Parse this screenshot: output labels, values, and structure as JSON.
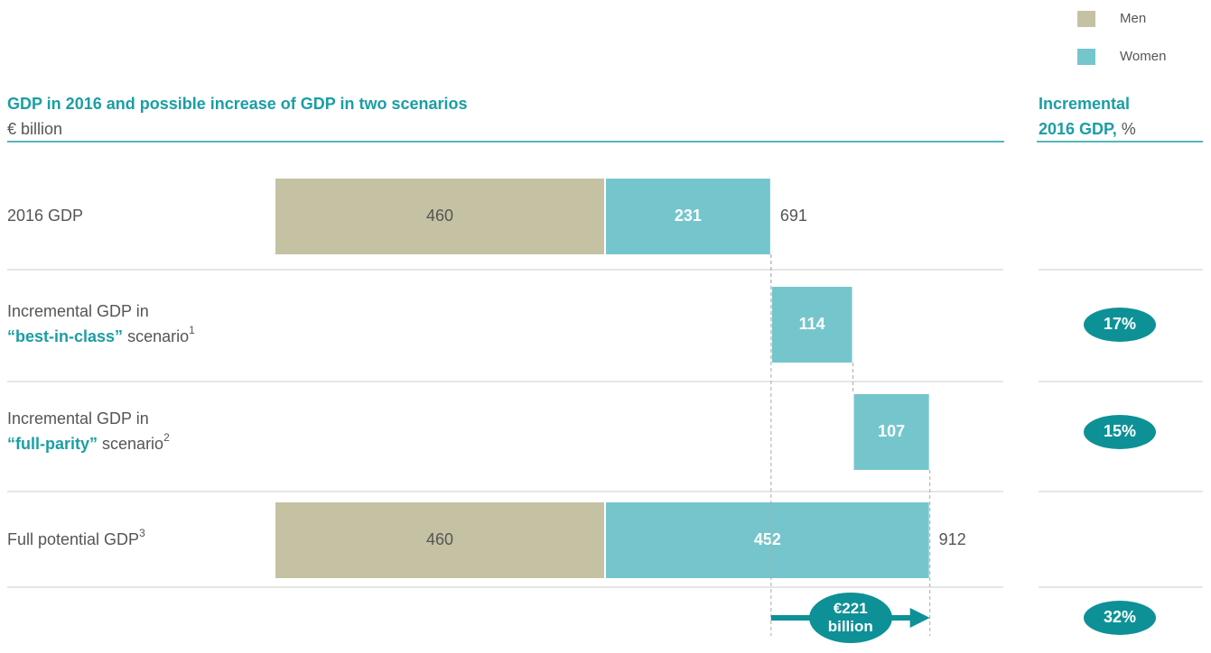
{
  "chart_data": {
    "type": "waterfall",
    "title": "GDP in 2016 and possible increase of GDP in two scenarios",
    "subtitle": "€ billion",
    "side_title_lines": [
      "Incremental",
      "2016 GDP,"
    ],
    "side_unit": "%",
    "series": [
      {
        "name": "Men",
        "color": "#c5c2a3"
      },
      {
        "name": "Women",
        "color": "#74c6cc"
      }
    ],
    "rows": [
      {
        "label": "2016 GDP",
        "segments": [
          {
            "series": 0,
            "value": 460
          },
          {
            "series": 1,
            "value": 231
          }
        ],
        "total": 691
      },
      {
        "label": "Incremental GDP in",
        "highlight": "“best-in-class”",
        "suffix": "scenario",
        "footnote": "1",
        "segments": [
          {
            "series": 1,
            "value": 114
          }
        ]
      },
      {
        "label": "Incremental GDP in",
        "highlight": "“full-parity”",
        "suffix": "scenario",
        "footnote": "2",
        "segments": [
          {
            "series": 1,
            "value": 107
          }
        ]
      },
      {
        "label": "Full potential GDP",
        "footnote": "3",
        "segments": [
          {
            "series": 0,
            "value": 460
          },
          {
            "series": 1,
            "value": 452
          }
        ],
        "total": 912
      }
    ],
    "badges": {
      "rows": [
        1,
        2,
        4
      ],
      "values": [
        17,
        15,
        32
      ],
      "value_labels": [
        "17%",
        "15%",
        "32%"
      ]
    },
    "summary": {
      "value": 221,
      "value_label": "€221 billion"
    }
  }
}
